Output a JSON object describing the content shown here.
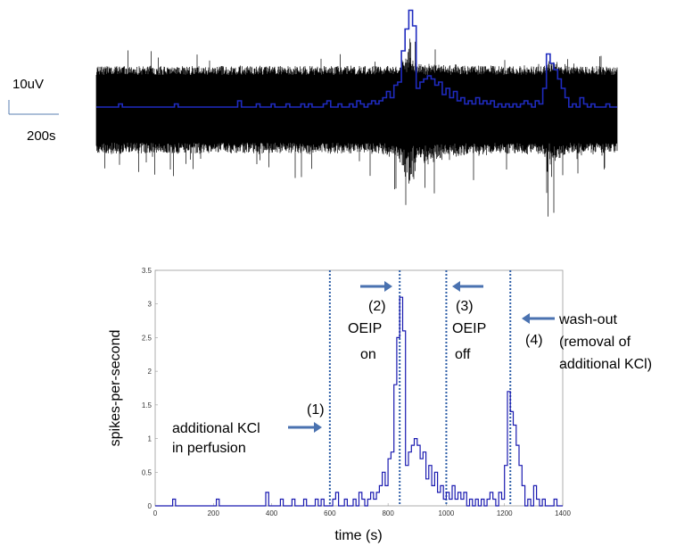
{
  "scale_bar": {
    "voltage": "10uV",
    "time": "200s"
  },
  "colors": {
    "trace": "#000000",
    "overlay": "#1f2bbf",
    "histogram": "#1a1ab0",
    "marker": "#2f5fa8",
    "arrow": "#4a72b0",
    "scale_bar": "#5a7fb0"
  },
  "chart_data": [
    {
      "type": "area",
      "description_visible": false,
      "x_range": [
        0,
        1400
      ],
      "y_unit": "uV",
      "trace_color": "#000000",
      "overlay_series": "spike rate (same as histogram, scaled)"
    },
    {
      "type": "line",
      "xlabel": "time (s)",
      "ylabel": "spikes-per-second",
      "xlim": [
        0,
        1400
      ],
      "ylim": [
        0,
        3.5
      ],
      "xticks": [
        0,
        200,
        400,
        600,
        800,
        1000,
        1200,
        1400
      ],
      "yticks": [
        0,
        0.5,
        1,
        1.5,
        2,
        2.5,
        3,
        3.5
      ],
      "step": "stairs",
      "bin_width": 10,
      "series": [
        {
          "values": [
            [
              0,
              0
            ],
            [
              10,
              0
            ],
            [
              20,
              0
            ],
            [
              30,
              0
            ],
            [
              40,
              0
            ],
            [
              50,
              0
            ],
            [
              60,
              0.1
            ],
            [
              70,
              0
            ],
            [
              80,
              0
            ],
            [
              90,
              0
            ],
            [
              100,
              0
            ],
            [
              110,
              0
            ],
            [
              120,
              0
            ],
            [
              130,
              0
            ],
            [
              140,
              0
            ],
            [
              150,
              0
            ],
            [
              160,
              0
            ],
            [
              170,
              0
            ],
            [
              180,
              0
            ],
            [
              190,
              0
            ],
            [
              200,
              0
            ],
            [
              210,
              0.1
            ],
            [
              220,
              0
            ],
            [
              230,
              0
            ],
            [
              240,
              0
            ],
            [
              250,
              0
            ],
            [
              260,
              0
            ],
            [
              270,
              0
            ],
            [
              280,
              0
            ],
            [
              290,
              0
            ],
            [
              300,
              0
            ],
            [
              310,
              0
            ],
            [
              320,
              0
            ],
            [
              330,
              0
            ],
            [
              340,
              0
            ],
            [
              350,
              0
            ],
            [
              360,
              0
            ],
            [
              370,
              0
            ],
            [
              380,
              0.2
            ],
            [
              390,
              0
            ],
            [
              400,
              0
            ],
            [
              410,
              0
            ],
            [
              420,
              0
            ],
            [
              430,
              0.1
            ],
            [
              440,
              0
            ],
            [
              450,
              0
            ],
            [
              460,
              0
            ],
            [
              470,
              0.1
            ],
            [
              480,
              0
            ],
            [
              490,
              0
            ],
            [
              500,
              0
            ],
            [
              510,
              0.1
            ],
            [
              520,
              0
            ],
            [
              530,
              0
            ],
            [
              540,
              0
            ],
            [
              550,
              0.1
            ],
            [
              560,
              0
            ],
            [
              570,
              0.1
            ],
            [
              580,
              0
            ],
            [
              590,
              0
            ],
            [
              600,
              0
            ],
            [
              610,
              0.1
            ],
            [
              620,
              0.2
            ],
            [
              630,
              0
            ],
            [
              640,
              0
            ],
            [
              650,
              0.1
            ],
            [
              660,
              0
            ],
            [
              670,
              0
            ],
            [
              680,
              0.1
            ],
            [
              690,
              0
            ],
            [
              700,
              0.2
            ],
            [
              710,
              0.1
            ],
            [
              720,
              0
            ],
            [
              730,
              0.1
            ],
            [
              740,
              0.2
            ],
            [
              750,
              0.1
            ],
            [
              760,
              0.2
            ],
            [
              770,
              0.3
            ],
            [
              780,
              0.5
            ],
            [
              790,
              0.3
            ],
            [
              800,
              0.7
            ],
            [
              810,
              0.8
            ],
            [
              820,
              1.8
            ],
            [
              830,
              2.5
            ],
            [
              840,
              3.1
            ],
            [
              850,
              2.6
            ],
            [
              860,
              0.6
            ],
            [
              870,
              0.8
            ],
            [
              880,
              0.9
            ],
            [
              890,
              1.0
            ],
            [
              900,
              0.9
            ],
            [
              910,
              0.7
            ],
            [
              920,
              0.8
            ],
            [
              930,
              0.4
            ],
            [
              940,
              0.6
            ],
            [
              950,
              0.3
            ],
            [
              960,
              0.5
            ],
            [
              970,
              0.2
            ],
            [
              980,
              0.3
            ],
            [
              990,
              0.1
            ],
            [
              1000,
              0.2
            ],
            [
              1010,
              0.1
            ],
            [
              1020,
              0.3
            ],
            [
              1030,
              0.1
            ],
            [
              1040,
              0.2
            ],
            [
              1050,
              0.1
            ],
            [
              1060,
              0.2
            ],
            [
              1070,
              0
            ],
            [
              1080,
              0.1
            ],
            [
              1090,
              0
            ],
            [
              1100,
              0.1
            ],
            [
              1110,
              0
            ],
            [
              1120,
              0.1
            ],
            [
              1130,
              0
            ],
            [
              1140,
              0.1
            ],
            [
              1150,
              0.2
            ],
            [
              1160,
              0.1
            ],
            [
              1170,
              0
            ],
            [
              1180,
              0.2
            ],
            [
              1190,
              0.1
            ],
            [
              1200,
              0.6
            ],
            [
              1210,
              1.7
            ],
            [
              1220,
              1.4
            ],
            [
              1230,
              1.2
            ],
            [
              1240,
              0.9
            ],
            [
              1250,
              0.6
            ],
            [
              1260,
              0.3
            ],
            [
              1270,
              0
            ],
            [
              1280,
              0.1
            ],
            [
              1290,
              0
            ],
            [
              1300,
              0.3
            ],
            [
              1310,
              0.1
            ],
            [
              1320,
              0
            ],
            [
              1330,
              0.1
            ],
            [
              1340,
              0
            ],
            [
              1350,
              0
            ],
            [
              1360,
              0
            ],
            [
              1370,
              0.1
            ],
            [
              1380,
              0
            ],
            [
              1390,
              0
            ]
          ]
        }
      ],
      "markers_x": [
        600,
        840,
        1000,
        1220
      ],
      "annotations": {
        "m1_num": "(1)",
        "m1_line1": "additional KCl",
        "m1_line2": "in perfusion",
        "m2_num": "(2)",
        "m2_line1": "OEIP",
        "m2_line2": "on",
        "m3_num": "(3)",
        "m3_line1": "OEIP",
        "m3_line2": "off",
        "m4_num": "(4)",
        "m4_line1": "wash-out",
        "m4_line2": "(removal of",
        "m4_line3": "additional KCl)"
      }
    }
  ]
}
